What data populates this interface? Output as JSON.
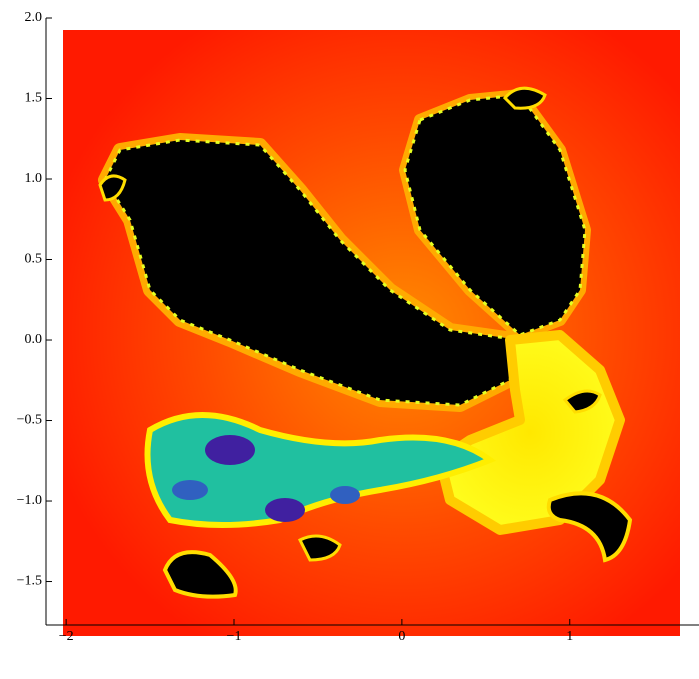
{
  "chart_data": {
    "type": "image",
    "xlim": [
      -2.12,
      1.77
    ],
    "ylim": [
      -1.77,
      2.0
    ],
    "xticks": [
      {
        "value": -2,
        "label": "−2"
      },
      {
        "value": -1,
        "label": "−1"
      },
      0,
      1
    ],
    "yticks": [
      {
        "value": 2,
        "label": "2.0"
      },
      1.5,
      {
        "value": 1,
        "label": "1.0"
      },
      0.5,
      {
        "value": 0,
        "label": "0.0"
      },
      {
        "value": -0.5,
        "label": "−0.5"
      },
      {
        "value": -1,
        "label": "−1.0"
      },
      {
        "value": -1.5,
        "label": "−1.5"
      }
    ]
  }
}
